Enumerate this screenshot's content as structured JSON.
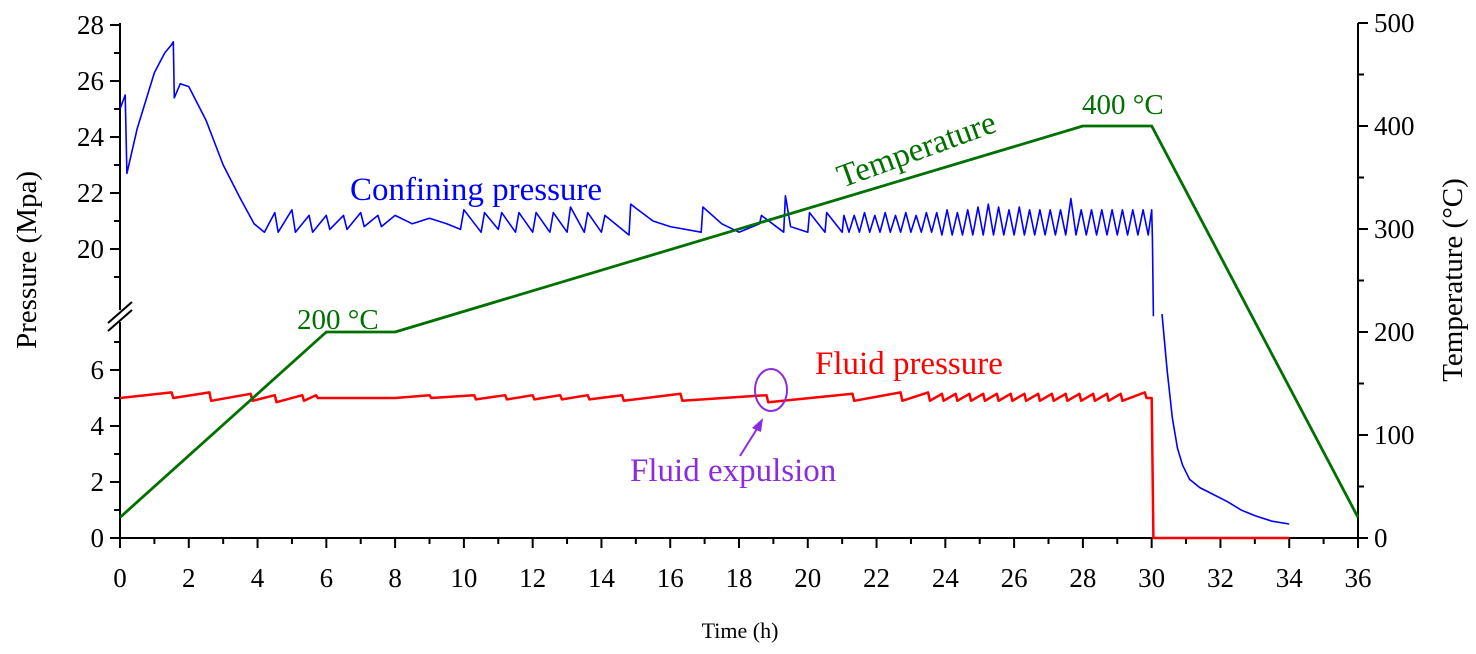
{
  "chart_data": {
    "type": "line",
    "title": "",
    "xlabel": "Time (h)",
    "ylabel_left": "Pressure (Mpa)",
    "ylabel_right": "Temperature (°C)",
    "xlim": [
      0,
      36
    ],
    "x_ticks": [
      "0",
      "2",
      "4",
      "6",
      "8",
      "10",
      "12",
      "14",
      "16",
      "18",
      "20",
      "22",
      "24",
      "26",
      "28",
      "30",
      "32",
      "34",
      "36"
    ],
    "ylim_left_lower": [
      0,
      7.7
    ],
    "ylim_left_upper": [
      17.6,
      28
    ],
    "y_ticks_left_lower": [
      "0",
      "2",
      "4",
      "6"
    ],
    "y_ticks_left_upper": [
      "20",
      "22",
      "24",
      "26",
      "28"
    ],
    "ylim_right": [
      0,
      500
    ],
    "y_ticks_right": [
      "0",
      "100",
      "200",
      "300",
      "400",
      "500"
    ],
    "axis_break": true,
    "grid": false,
    "colors": {
      "confining": "#0000ff",
      "fluid": "#ff0000",
      "temperature": "#007000",
      "annotation": "#8a2be2"
    },
    "series": [
      {
        "name": "Confining pressure",
        "axis": "left",
        "segments": [
          [
            [
              0,
              25.0
            ],
            [
              0.15,
              25.5
            ],
            [
              0.2,
              22.7
            ],
            [
              0.5,
              24.3
            ],
            [
              1.0,
              26.3
            ],
            [
              1.3,
              27.0
            ],
            [
              1.5,
              27.3
            ],
            [
              1.55,
              27.4
            ],
            [
              1.58,
              25.4
            ],
            [
              1.75,
              25.9
            ],
            [
              2.0,
              25.8
            ],
            [
              2.5,
              24.6
            ],
            [
              3.0,
              23.0
            ],
            [
              3.5,
              21.8
            ],
            [
              3.9,
              20.9
            ],
            [
              4.2,
              20.6
            ],
            [
              4.5,
              21.3
            ],
            [
              4.6,
              20.6
            ],
            [
              5.0,
              21.4
            ],
            [
              5.1,
              20.6
            ],
            [
              5.5,
              21.2
            ],
            [
              5.6,
              20.6
            ],
            [
              6.0,
              21.2
            ],
            [
              6.1,
              20.7
            ],
            [
              6.5,
              21.2
            ],
            [
              6.6,
              20.7
            ],
            [
              7.0,
              21.3
            ],
            [
              7.1,
              20.8
            ],
            [
              7.5,
              21.2
            ],
            [
              7.6,
              20.8
            ],
            [
              8.0,
              21.2
            ],
            [
              8.5,
              20.9
            ],
            [
              9.0,
              21.1
            ],
            [
              9.5,
              20.9
            ],
            [
              9.9,
              20.7
            ],
            [
              10.0,
              21.4
            ],
            [
              10.5,
              20.6
            ],
            [
              10.6,
              21.3
            ],
            [
              11.0,
              20.7
            ],
            [
              11.1,
              21.3
            ],
            [
              11.5,
              20.6
            ],
            [
              11.6,
              21.3
            ],
            [
              12.0,
              20.6
            ],
            [
              12.1,
              21.3
            ],
            [
              12.5,
              20.6
            ],
            [
              12.6,
              21.3
            ],
            [
              13.0,
              20.6
            ],
            [
              13.1,
              21.5
            ],
            [
              13.5,
              20.6
            ],
            [
              13.6,
              21.3
            ],
            [
              14.0,
              20.6
            ],
            [
              14.1,
              21.2
            ],
            [
              14.8,
              20.5
            ],
            [
              14.85,
              21.6
            ],
            [
              15.5,
              21.0
            ],
            [
              16.0,
              20.8
            ],
            [
              16.9,
              20.6
            ],
            [
              16.95,
              21.5
            ],
            [
              17.5,
              20.9
            ],
            [
              18.0,
              20.6
            ],
            [
              18.6,
              20.9
            ],
            [
              18.65,
              21.2
            ],
            [
              19.3,
              20.6
            ],
            [
              19.35,
              21.9
            ],
            [
              19.5,
              20.8
            ],
            [
              20.0,
              20.6
            ],
            [
              20.05,
              21.3
            ],
            [
              20.5,
              20.6
            ],
            [
              20.55,
              21.3
            ],
            [
              21.0,
              20.6
            ],
            [
              21.05,
              21.2
            ],
            [
              21.2,
              20.6
            ],
            [
              21.35,
              21.2
            ],
            [
              21.5,
              20.6
            ],
            [
              21.65,
              21.3
            ],
            [
              21.8,
              20.6
            ],
            [
              21.95,
              21.2
            ],
            [
              22.1,
              20.6
            ],
            [
              22.25,
              21.3
            ],
            [
              22.4,
              20.6
            ],
            [
              22.55,
              21.2
            ],
            [
              22.7,
              20.6
            ],
            [
              22.85,
              21.3
            ],
            [
              23.0,
              20.6
            ],
            [
              23.15,
              21.2
            ],
            [
              23.3,
              20.6
            ],
            [
              23.45,
              21.3
            ],
            [
              23.6,
              20.6
            ],
            [
              23.75,
              21.3
            ],
            [
              23.9,
              20.5
            ],
            [
              24.05,
              21.4
            ],
            [
              24.2,
              20.5
            ],
            [
              24.35,
              21.3
            ],
            [
              24.5,
              20.5
            ],
            [
              24.65,
              21.4
            ],
            [
              24.8,
              20.5
            ],
            [
              24.95,
              21.5
            ],
            [
              25.1,
              20.5
            ],
            [
              25.25,
              21.6
            ],
            [
              25.4,
              20.5
            ],
            [
              25.55,
              21.5
            ],
            [
              25.7,
              20.5
            ],
            [
              25.85,
              21.4
            ],
            [
              26.0,
              20.5
            ],
            [
              26.15,
              21.5
            ],
            [
              26.3,
              20.5
            ],
            [
              26.45,
              21.4
            ],
            [
              26.6,
              20.5
            ],
            [
              26.75,
              21.4
            ],
            [
              26.9,
              20.5
            ],
            [
              27.05,
              21.4
            ],
            [
              27.2,
              20.5
            ],
            [
              27.35,
              21.4
            ],
            [
              27.5,
              20.5
            ],
            [
              27.65,
              21.8
            ],
            [
              27.8,
              20.5
            ],
            [
              27.95,
              21.4
            ],
            [
              28.1,
              20.5
            ],
            [
              28.25,
              21.4
            ],
            [
              28.4,
              20.5
            ],
            [
              28.55,
              21.4
            ],
            [
              28.7,
              20.5
            ],
            [
              28.85,
              21.4
            ],
            [
              29.0,
              20.5
            ],
            [
              29.15,
              21.4
            ],
            [
              29.3,
              20.5
            ],
            [
              29.45,
              21.4
            ],
            [
              29.6,
              20.5
            ],
            [
              29.75,
              21.4
            ],
            [
              29.9,
              20.5
            ],
            [
              30.0,
              21.4
            ],
            [
              30.02,
              20.4
            ],
            [
              30.05,
              17.6
            ]
          ],
          [
            [
              30.3,
              8.0
            ],
            [
              30.45,
              6.0
            ],
            [
              30.6,
              4.3
            ],
            [
              30.75,
              3.2
            ],
            [
              30.9,
              2.6
            ],
            [
              31.1,
              2.1
            ],
            [
              31.4,
              1.8
            ],
            [
              31.8,
              1.55
            ],
            [
              32.2,
              1.3
            ],
            [
              32.6,
              1.0
            ],
            [
              33.0,
              0.8
            ],
            [
              33.5,
              0.6
            ],
            [
              34.0,
              0.5
            ]
          ]
        ]
      },
      {
        "name": "Fluid pressure",
        "axis": "left",
        "segments": [
          [
            [
              0,
              5.0
            ],
            [
              1.5,
              5.2
            ],
            [
              1.55,
              5.0
            ],
            [
              2.6,
              5.2
            ],
            [
              2.65,
              4.9
            ],
            [
              3.8,
              5.15
            ],
            [
              3.85,
              4.9
            ],
            [
              4.5,
              5.1
            ],
            [
              4.55,
              4.85
            ],
            [
              5.3,
              5.1
            ],
            [
              5.35,
              4.9
            ],
            [
              5.7,
              5.1
            ],
            [
              5.75,
              5.0
            ],
            [
              8.0,
              5.0
            ],
            [
              9.0,
              5.1
            ],
            [
              9.05,
              5.0
            ],
            [
              10.3,
              5.1
            ],
            [
              10.35,
              4.95
            ],
            [
              11.2,
              5.1
            ],
            [
              11.25,
              4.95
            ],
            [
              12.0,
              5.1
            ],
            [
              12.05,
              4.95
            ],
            [
              12.8,
              5.1
            ],
            [
              12.85,
              4.95
            ],
            [
              13.6,
              5.1
            ],
            [
              13.65,
              4.95
            ],
            [
              14.6,
              5.1
            ],
            [
              14.65,
              4.9
            ],
            [
              16.3,
              5.15
            ],
            [
              16.35,
              4.9
            ],
            [
              18.8,
              5.1
            ],
            [
              18.85,
              4.85
            ],
            [
              21.3,
              5.15
            ],
            [
              21.35,
              4.9
            ],
            [
              22.7,
              5.2
            ],
            [
              22.75,
              4.9
            ],
            [
              23.5,
              5.2
            ],
            [
              23.55,
              4.9
            ],
            [
              23.9,
              5.15
            ],
            [
              23.95,
              4.9
            ],
            [
              24.3,
              5.15
            ],
            [
              24.35,
              4.9
            ],
            [
              24.7,
              5.15
            ],
            [
              24.75,
              4.9
            ],
            [
              25.1,
              5.15
            ],
            [
              25.15,
              4.9
            ],
            [
              25.5,
              5.15
            ],
            [
              25.55,
              4.9
            ],
            [
              25.9,
              5.15
            ],
            [
              25.95,
              4.9
            ],
            [
              26.3,
              5.15
            ],
            [
              26.35,
              4.9
            ],
            [
              26.7,
              5.15
            ],
            [
              26.75,
              4.9
            ],
            [
              27.1,
              5.15
            ],
            [
              27.15,
              4.9
            ],
            [
              27.5,
              5.15
            ],
            [
              27.55,
              4.9
            ],
            [
              27.9,
              5.15
            ],
            [
              27.95,
              4.9
            ],
            [
              28.3,
              5.15
            ],
            [
              28.35,
              4.9
            ],
            [
              28.7,
              5.15
            ],
            [
              28.75,
              4.9
            ],
            [
              29.1,
              5.15
            ],
            [
              29.15,
              4.9
            ],
            [
              29.8,
              5.2
            ],
            [
              29.85,
              5.0
            ],
            [
              30.0,
              5.0
            ],
            [
              30.05,
              0
            ],
            [
              34.0,
              0
            ]
          ]
        ]
      },
      {
        "name": "Temperature",
        "axis": "right",
        "segments": [
          [
            [
              0,
              20
            ],
            [
              6,
              200
            ],
            [
              8,
              200
            ],
            [
              28,
              400
            ],
            [
              30,
              400
            ],
            [
              36,
              20
            ]
          ]
        ]
      }
    ],
    "annotations": {
      "confining_label": "Confining pressure",
      "temperature_label": "Temperature",
      "fluid_label": "Fluid pressure",
      "t200_label": "200 °C",
      "t400_label": "400 °C",
      "expulsion_label": "Fluid expulsion",
      "expulsion_point": [
        18.8,
        5.1
      ]
    }
  }
}
